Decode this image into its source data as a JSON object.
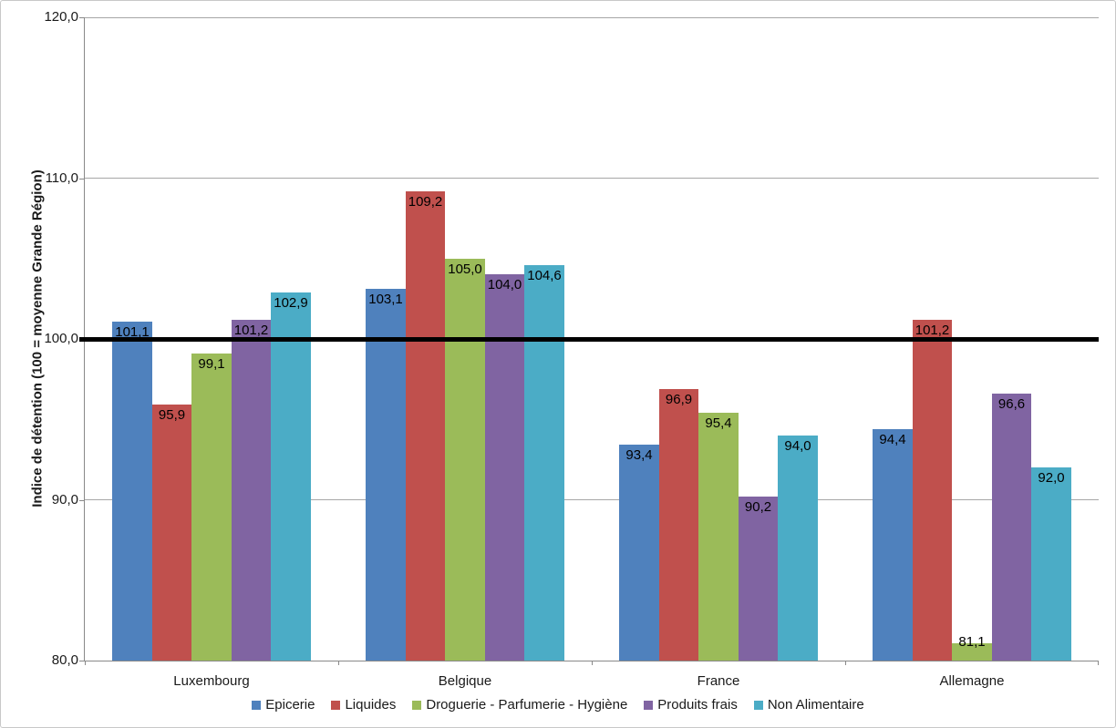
{
  "chart_data": {
    "type": "bar",
    "title": "",
    "xlabel": "",
    "ylabel": "Indice de détention (100 = moyenne Grande Région)",
    "ylim": [
      80,
      120
    ],
    "grid": true,
    "legend_position": "bottom",
    "yticks": [
      {
        "value": 120,
        "label": "120,0"
      },
      {
        "value": 110,
        "label": "110,0"
      },
      {
        "value": 100,
        "label": "100,0"
      },
      {
        "value": 90,
        "label": "90,0"
      },
      {
        "value": 80,
        "label": "80,0"
      }
    ],
    "categories": [
      "Luxembourg",
      "Belgique",
      "France",
      "Allemagne"
    ],
    "series": [
      {
        "name": "Epicerie",
        "color": "#4F81BD",
        "values": [
          101.1,
          103.1,
          93.4,
          94.4
        ],
        "labels": [
          "101,1",
          "103,1",
          "93,4",
          "94,4"
        ]
      },
      {
        "name": "Liquides",
        "color": "#C0504D",
        "values": [
          95.9,
          109.2,
          96.9,
          101.2
        ],
        "labels": [
          "95,9",
          "109,2",
          "96,9",
          "101,2"
        ]
      },
      {
        "name": "Droguerie - Parfumerie - Hygiène",
        "color": "#9BBB59",
        "values": [
          99.1,
          105.0,
          95.4,
          81.1
        ],
        "labels": [
          "99,1",
          "105,0",
          "95,4",
          "81,1"
        ]
      },
      {
        "name": "Produits frais",
        "color": "#8064A2",
        "values": [
          101.2,
          104.0,
          90.2,
          96.6
        ],
        "labels": [
          "101,2",
          "104,0",
          "90,2",
          "96,6"
        ]
      },
      {
        "name": "Non Alimentaire",
        "color": "#4BACC6",
        "values": [
          102.9,
          104.6,
          94.0,
          92.0
        ],
        "labels": [
          "102,9",
          "104,6",
          "94,0",
          "92,0"
        ]
      }
    ],
    "reference_line": {
      "value": 100,
      "color": "#000000"
    }
  }
}
